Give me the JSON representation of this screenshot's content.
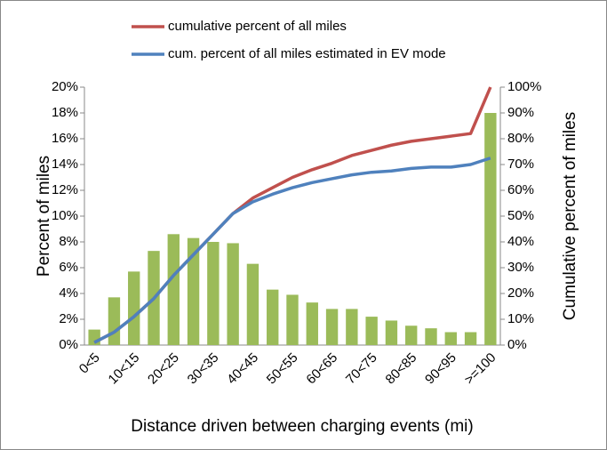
{
  "chart_data": {
    "type": "bar_line",
    "x_label": "Distance driven between charging events (mi)",
    "y_label": "Percent of miles",
    "y2_label": "Cumulative percent of miles",
    "categories": [
      "0<5",
      null,
      "10<15",
      null,
      "20<25",
      null,
      "30<35",
      null,
      "40<45",
      null,
      "50<55",
      null,
      "60<65",
      null,
      "70<75",
      null,
      "80<85",
      null,
      "90<95",
      null,
      ">=100"
    ],
    "values": [
      1.2,
      3.7,
      5.7,
      7.3,
      8.6,
      8.3,
      8.0,
      7.9,
      6.3,
      4.3,
      3.9,
      3.3,
      2.8,
      2.8,
      2.2,
      1.9,
      1.5,
      1.3,
      1.0,
      1.0,
      18.0
    ],
    "color": "#9bbb59",
    "series": [
      {
        "name": "cumulative percent of all miles",
        "color": "#c0504d",
        "axis": "y2",
        "values": [
          1,
          5,
          11,
          18,
          27,
          35,
          43,
          51,
          57,
          61,
          65,
          68,
          70.5,
          73.5,
          75.5,
          77.5,
          79,
          80,
          81,
          82,
          100
        ]
      },
      {
        "name": "cum. percent of all miles estimated  in EV mode",
        "color": "#4f81bd",
        "axis": "y2",
        "values": [
          1,
          5,
          11,
          18,
          27,
          35,
          43,
          51,
          55.5,
          58.5,
          61,
          63,
          64.5,
          66,
          67,
          67.5,
          68.5,
          69,
          69,
          70,
          72.5
        ]
      }
    ],
    "ylim": [
      0,
      20
    ],
    "yticks": [
      {
        "value": 0,
        "label": "0%"
      },
      {
        "value": 2,
        "label": "2%"
      },
      {
        "value": 4,
        "label": "4%"
      },
      {
        "value": 6,
        "label": "6%"
      },
      {
        "value": 8,
        "label": "8%"
      },
      {
        "value": 10,
        "label": "10%"
      },
      {
        "value": 12,
        "label": "12%"
      },
      {
        "value": 14,
        "label": "14%"
      },
      {
        "value": 16,
        "label": "16%"
      },
      {
        "value": 18,
        "label": "18%"
      },
      {
        "value": 20,
        "label": "20%"
      }
    ],
    "y2lim": [
      0,
      100
    ],
    "y2ticks": [
      {
        "value": 0,
        "label": "0%"
      },
      {
        "value": 10,
        "label": "10%"
      },
      {
        "value": 20,
        "label": "20%"
      },
      {
        "value": 30,
        "label": "30%"
      },
      {
        "value": 40,
        "label": "40%"
      },
      {
        "value": 50,
        "label": "50%"
      },
      {
        "value": 60,
        "label": "60%"
      },
      {
        "value": 70,
        "label": "70%"
      },
      {
        "value": 80,
        "label": "80%"
      },
      {
        "value": 90,
        "label": "90%"
      },
      {
        "value": 100,
        "label": "100%"
      }
    ]
  }
}
